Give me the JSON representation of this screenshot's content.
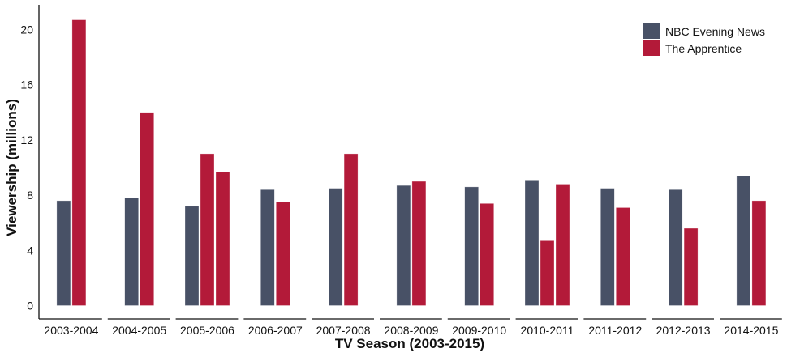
{
  "chart_data": {
    "type": "bar",
    "title": "",
    "xlabel": "TV Season (2003-2015)",
    "ylabel": "Viewership (millions)",
    "ylim": [
      0,
      21.5
    ],
    "yticks": [
      0,
      4,
      8,
      12,
      16,
      20
    ],
    "grid": false,
    "legend_position": "top-right",
    "categories": [
      "2003-2004",
      "2004-2005",
      "2005-2006",
      "2006-2007",
      "2007-2008",
      "2008-2009",
      "2009-2010",
      "2010-2011",
      "2011-2012",
      "2012-2013",
      "2014-2015"
    ],
    "series": [
      {
        "name": "NBC Evening News",
        "color": "#485166",
        "values": [
          7.6,
          7.8,
          7.2,
          8.4,
          8.5,
          8.7,
          8.6,
          9.1,
          8.5,
          8.4,
          9.4
        ]
      },
      {
        "name": "The Apprentice",
        "color": "#b31a39",
        "values": [
          20.7,
          14.0,
          [
            11.0,
            9.7
          ],
          7.5,
          11.0,
          9.0,
          7.4,
          [
            4.7,
            8.8
          ],
          7.1,
          5.6,
          7.6
        ]
      }
    ],
    "notes": "2005-2006 and 2010-2011 each show two Apprentice bars (two editions that season)."
  },
  "legend": {
    "items": [
      {
        "label": "NBC Evening News",
        "color": "#485166"
      },
      {
        "label": "The Apprentice",
        "color": "#b31a39"
      }
    ]
  },
  "axes": {
    "x_title": "TV Season (2003-2015)",
    "y_title": "Viewership (millions)"
  }
}
